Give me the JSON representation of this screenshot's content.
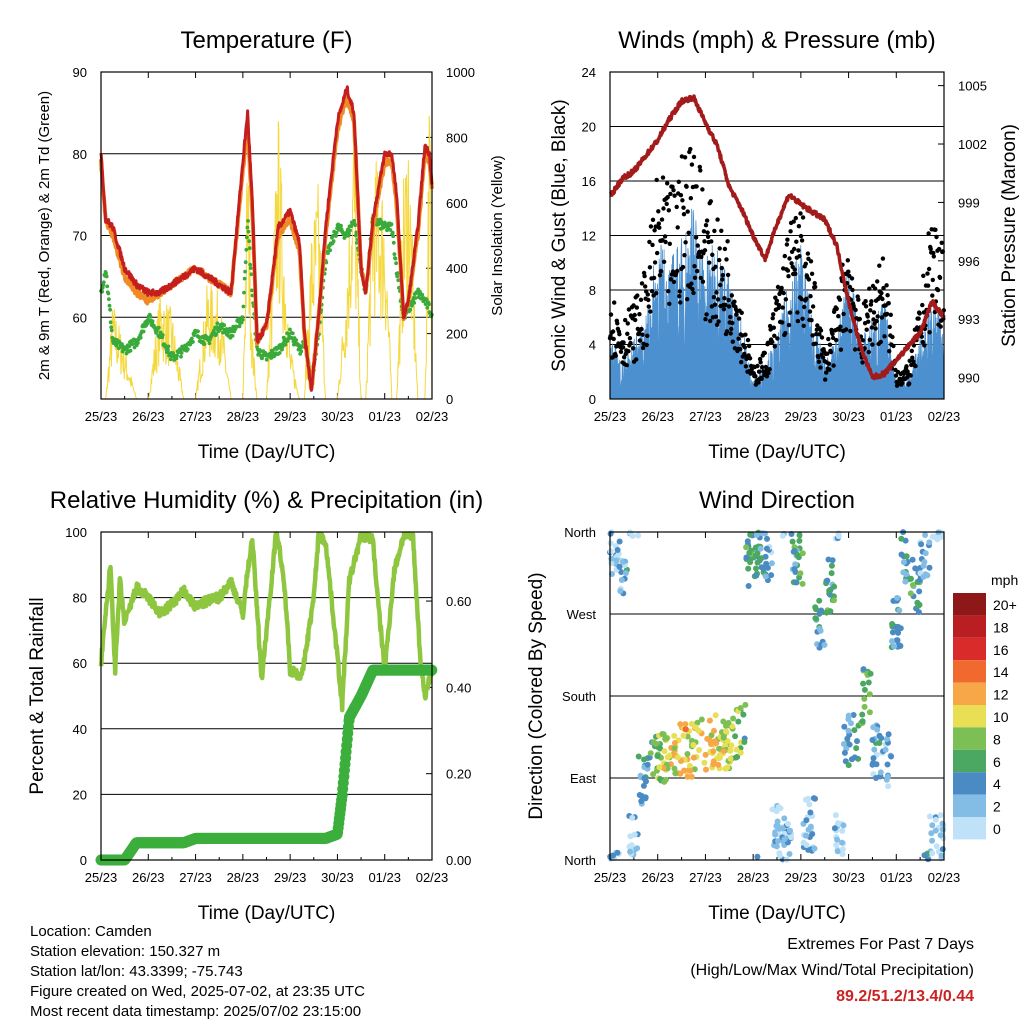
{
  "footer": {
    "location": "Location: Camden",
    "elevation": "Station elevation: 150.327 m",
    "latlon": "Station lat/lon: 43.3399; -75.743",
    "created": "Figure created on Wed, 2025-07-02, at 23:35 UTC",
    "timestamp": "Most recent data timestamp: 2025/07/02 23:15:00"
  },
  "extremes": {
    "title": "Extremes For Past 7 Days",
    "subtitle": "(High/Low/Max Wind/Total Precipitation)",
    "values": "89.2/51.2/13.4/0.44"
  },
  "colors": {
    "temp2m": "#c41e1e",
    "temp9m": "#f08a24",
    "dewpoint": "#3aaa3a",
    "solar": "#f5d83c",
    "wind": "#4d90cf",
    "gust": "#000000",
    "pressure": "#a31a1a",
    "rh": "#8ec63f",
    "precip": "#3cae3c"
  },
  "chart_data": [
    {
      "type": "line",
      "title": "Temperature (F)",
      "xlabel": "Time (Day/UTC)",
      "ylabel": "2m & 9m T (Red, Orange) & 2m Td (Green)",
      "ylabel_right": "Solar Insolation (Yellow)",
      "x_ticks": [
        "25/23",
        "26/23",
        "27/23",
        "28/23",
        "29/23",
        "30/23",
        "01/23",
        "02/23"
      ],
      "xlim": [
        0,
        7
      ],
      "ylim": [
        50,
        90
      ],
      "yticks": [
        60,
        70,
        80,
        90
      ],
      "ylim_right": [
        0,
        1000
      ],
      "yticks_right": [
        0,
        200,
        400,
        600,
        800,
        1000
      ],
      "grid": true,
      "x": [
        0,
        0.1,
        0.25,
        0.5,
        0.75,
        1,
        1.25,
        1.5,
        1.75,
        2,
        2.25,
        2.5,
        2.75,
        3,
        3.1,
        3.2,
        3.3,
        3.5,
        3.75,
        4,
        4.2,
        4.3,
        4.45,
        4.6,
        4.75,
        5,
        5.2,
        5.35,
        5.5,
        5.6,
        5.75,
        6,
        6.15,
        6.25,
        6.4,
        6.5,
        6.7,
        6.85,
        6.95,
        7
      ],
      "series": [
        {
          "name": "2m T",
          "values": [
            80,
            72,
            71,
            66,
            64,
            63,
            63,
            64,
            65,
            66,
            65,
            64,
            63,
            79,
            85,
            74,
            57,
            59,
            71,
            73,
            69,
            58,
            51,
            60,
            71,
            84,
            88,
            85,
            66,
            63,
            72,
            80,
            80,
            75,
            60,
            62,
            71,
            81,
            80,
            76
          ]
        },
        {
          "name": "9m T",
          "values": [
            79,
            72,
            70,
            65,
            63,
            62,
            63,
            64,
            65,
            66,
            65,
            64,
            63,
            78,
            83,
            73,
            57,
            59,
            70,
            72,
            68,
            58,
            51,
            60,
            70,
            83,
            87,
            84,
            66,
            63,
            71,
            79,
            79,
            74,
            60,
            62,
            70,
            80,
            79,
            76
          ]
        },
        {
          "name": "2m Td",
          "values": [
            63,
            66,
            57,
            56,
            57,
            60,
            58,
            55,
            56,
            58,
            57,
            59,
            58,
            60,
            72,
            63,
            56,
            55,
            56,
            58,
            56,
            57,
            52,
            58,
            67,
            71,
            70,
            72,
            66,
            63,
            72,
            71,
            71,
            66,
            60,
            61,
            63,
            62,
            61,
            60
          ]
        },
        {
          "name": "Solar",
          "values": [
            0,
            0,
            280,
            150,
            0,
            0,
            310,
            250,
            0,
            0,
            330,
            300,
            0,
            0,
            760,
            200,
            0,
            0,
            800,
            150,
            0,
            0,
            480,
            620,
            0,
            0,
            380,
            850,
            0,
            0,
            700,
            600,
            0,
            0,
            620,
            800,
            0,
            0,
            930,
            0
          ]
        }
      ]
    },
    {
      "type": "scatter",
      "title": "Winds (mph) & Pressure (mb)",
      "xlabel": "Time (Day/UTC)",
      "ylabel": "Sonic Wind & Gust (Blue, Black)",
      "ylabel_right": "Station Pressure (Maroon)",
      "x_ticks": [
        "25/23",
        "26/23",
        "27/23",
        "28/23",
        "29/23",
        "30/23",
        "01/23",
        "02/23"
      ],
      "xlim": [
        0,
        7
      ],
      "ylim": [
        0,
        24
      ],
      "yticks": [
        0,
        4,
        8,
        12,
        16,
        20,
        24
      ],
      "ylim_right": [
        988.9,
        1005.7
      ],
      "yticks_right": [
        990,
        993,
        996,
        999,
        1002,
        1005
      ],
      "grid": true,
      "x": [
        0,
        0.25,
        0.5,
        0.75,
        1,
        1.25,
        1.5,
        1.75,
        2,
        2.25,
        2.5,
        2.75,
        3,
        3.25,
        3.5,
        3.75,
        4,
        4.25,
        4.5,
        4.75,
        5,
        5.25,
        5.5,
        5.75,
        6,
        6.25,
        6.5,
        6.75,
        7
      ],
      "series": [
        {
          "name": "Sonic Wind",
          "values": [
            3,
            2,
            3,
            4,
            8,
            7,
            8,
            10,
            7,
            8,
            6,
            4,
            1,
            2,
            3,
            6,
            8,
            4,
            2,
            3,
            7,
            3,
            4,
            5,
            1,
            1,
            3,
            5,
            4
          ]
        },
        {
          "name": "Gust",
          "values": [
            7,
            5,
            6,
            8,
            14,
            13,
            15,
            17,
            13,
            11,
            10,
            6,
            2,
            3,
            7,
            11,
            12,
            8,
            3,
            6,
            11,
            5,
            8,
            9,
            2,
            2,
            6,
            12,
            10
          ]
        },
        {
          "name": "Pressure",
          "values": [
            999.3,
            1000.2,
            1000.6,
            1001.4,
            1002.2,
            1003.3,
            1004.2,
            1004.4,
            1003.1,
            1001.9,
            999.8,
            998.7,
            997.3,
            996.1,
            997.9,
            999.4,
            998.9,
            998.5,
            998.1,
            996.8,
            993.9,
            991.6,
            990.0,
            990.2,
            990.9,
            991.6,
            992.3,
            993.9,
            993.1
          ]
        }
      ]
    },
    {
      "type": "line",
      "title": "Relative Humidity (%) & Precipitation (in)",
      "xlabel": "Time (Day/UTC)",
      "ylabel": "Percent & Total Rainfall",
      "x_ticks": [
        "25/23",
        "26/23",
        "27/23",
        "28/23",
        "29/23",
        "30/23",
        "01/23",
        "02/23"
      ],
      "xlim": [
        0,
        7
      ],
      "ylim": [
        0,
        100
      ],
      "yticks": [
        0,
        20,
        40,
        60,
        80,
        100
      ],
      "ylim_right": [
        0,
        0.76
      ],
      "yticks_right": [
        "0.00",
        "0.20",
        "0.40",
        "0.60"
      ],
      "grid": true,
      "x": [
        0,
        0.1,
        0.2,
        0.3,
        0.4,
        0.5,
        0.75,
        1,
        1.25,
        1.5,
        1.75,
        2,
        2.25,
        2.5,
        2.75,
        3,
        3.1,
        3.2,
        3.4,
        3.5,
        3.7,
        3.75,
        3.9,
        4,
        4.25,
        4.5,
        4.6,
        4.75,
        5,
        5.1,
        5.25,
        5.5,
        5.75,
        5.85,
        6,
        6.2,
        6.4,
        6.5,
        6.6,
        6.75,
        6.85,
        7
      ],
      "series": [
        {
          "name": "RH",
          "values": [
            60,
            75,
            90,
            58,
            85,
            72,
            83,
            80,
            75,
            78,
            82,
            77,
            79,
            80,
            85,
            75,
            88,
            98,
            55,
            70,
            99,
            98,
            80,
            58,
            56,
            80,
            99,
            97,
            62,
            47,
            85,
            99,
            98,
            80,
            58,
            88,
            99,
            99,
            98,
            62,
            50,
            58
          ]
        },
        {
          "name": "Total Precipitation",
          "values": [
            0,
            0,
            0,
            0,
            0,
            0,
            0.04,
            0.04,
            0.04,
            0.04,
            0.04,
            0.05,
            0.05,
            0.05,
            0.05,
            0.05,
            0.05,
            0.05,
            0.05,
            0.05,
            0.05,
            0.05,
            0.05,
            0.05,
            0.05,
            0.05,
            0.05,
            0.05,
            0.06,
            0.15,
            0.33,
            0.38,
            0.44,
            0.44,
            0.44,
            0.44,
            0.44,
            0.44,
            0.44,
            0.44,
            0.44,
            0.44
          ]
        }
      ]
    },
    {
      "type": "scatter",
      "title": "Wind Direction",
      "xlabel": "Time (Day/UTC)",
      "ylabel": "Direction (Colored By Speed)",
      "x_ticks": [
        "25/23",
        "26/23",
        "27/23",
        "28/23",
        "29/23",
        "30/23",
        "01/23",
        "02/23"
      ],
      "xlim": [
        0,
        7
      ],
      "ylim": [
        0,
        360
      ],
      "yticks": [
        "North",
        "East",
        "South",
        "West",
        "North"
      ],
      "grid": true,
      "legend_title": "mph",
      "legend_position": "right",
      "legend_labels": [
        "20+",
        "18",
        "16",
        "14",
        "12",
        "10",
        "8",
        "6",
        "4",
        "2",
        "0"
      ],
      "legend_colors": [
        "#8e1717",
        "#b81e22",
        "#d92b2a",
        "#f0692f",
        "#f8a748",
        "#e8df55",
        "#7cc055",
        "#4aa862",
        "#4a8bc4",
        "#83bde5",
        "#bfe2f8"
      ],
      "x": [
        0.1,
        0.3,
        0.5,
        0.7,
        0.9,
        1.1,
        1.3,
        1.5,
        1.7,
        1.9,
        2.1,
        2.3,
        2.5,
        2.7,
        2.8,
        2.9,
        3.1,
        3.3,
        3.5,
        3.7,
        3.9,
        4.2,
        4.4,
        4.6,
        4.8,
        5.0,
        5.2,
        5.4,
        5.6,
        5.8,
        6.0,
        6.2,
        6.4,
        6.6,
        6.8
      ],
      "series": [
        {
          "name": "Direction",
          "values": [
            340,
            320,
            20,
            90,
            110,
            110,
            115,
            120,
            120,
            125,
            125,
            130,
            130,
            140,
            150,
            330,
            340,
            330,
            30,
            20,
            330,
            40,
            260,
            300,
            20,
            130,
            140,
            190,
            120,
            110,
            260,
            330,
            300,
            340,
            20
          ]
        },
        {
          "name": "Speed",
          "values": [
            2,
            3,
            1,
            4,
            6,
            9,
            10,
            11,
            10,
            10,
            11,
            10,
            9,
            8,
            6,
            6,
            4,
            3,
            1,
            2,
            5,
            2,
            4,
            5,
            1,
            4,
            6,
            6,
            3,
            2,
            4,
            4,
            5,
            3,
            1
          ]
        }
      ]
    }
  ]
}
